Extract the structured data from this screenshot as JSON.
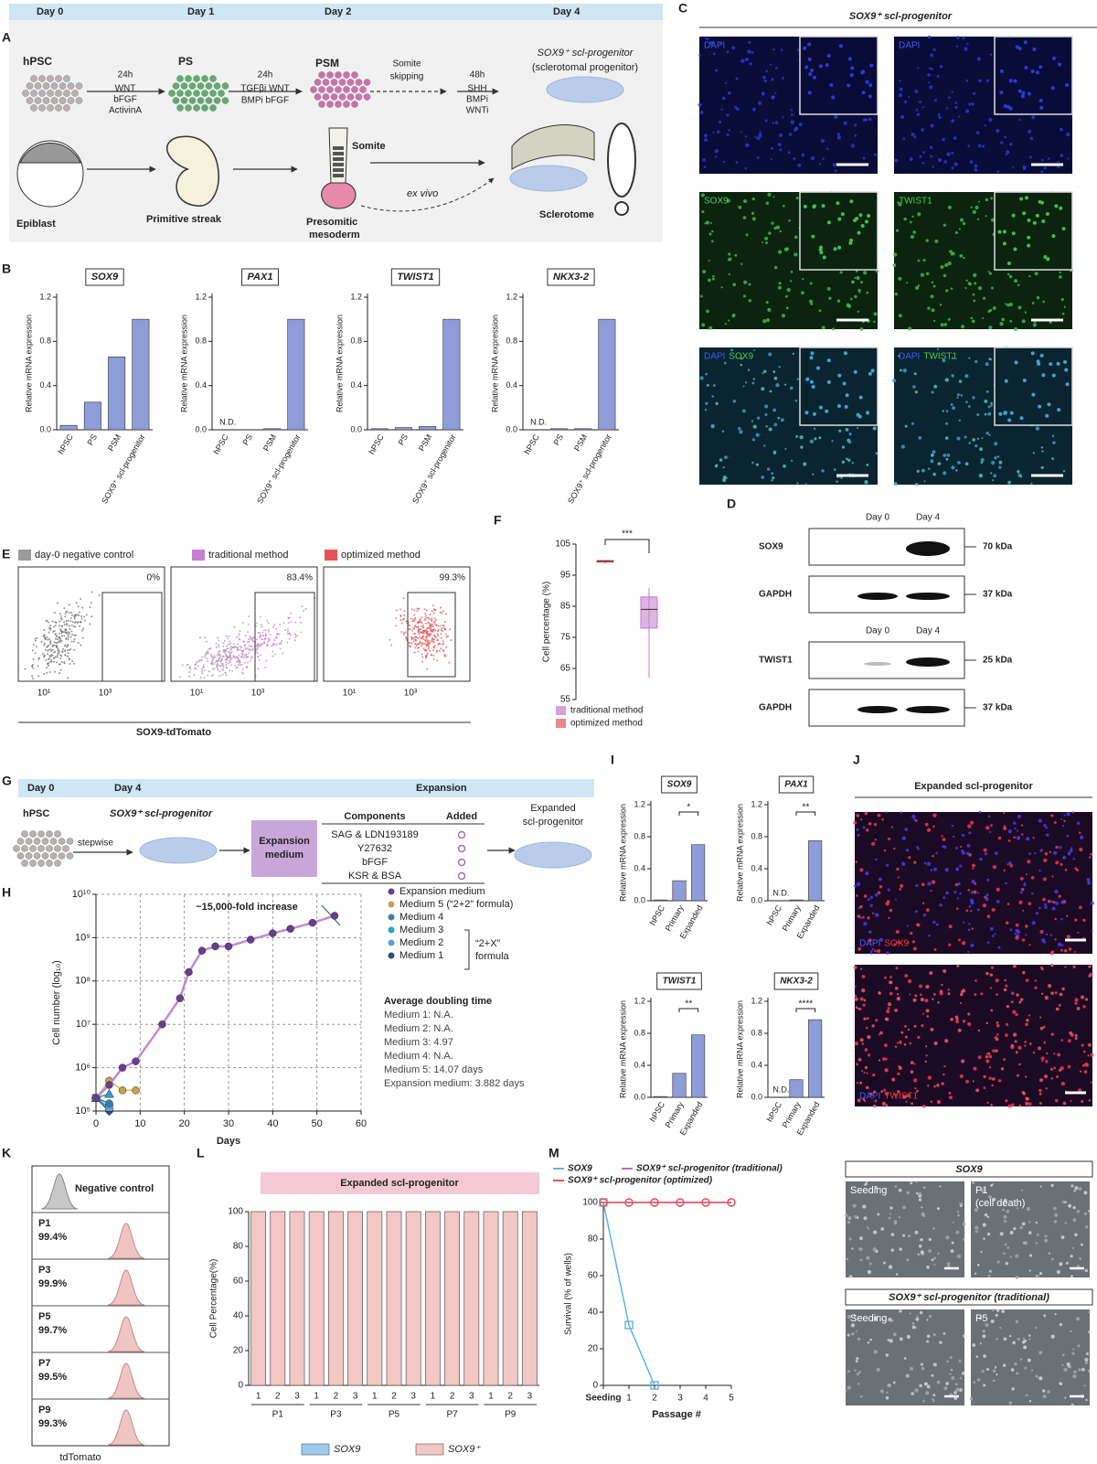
{
  "panels": {
    "A": {
      "letter": "A",
      "days": [
        "Day 0",
        "Day 1",
        "Day 2",
        "Day 4"
      ],
      "hpsc": "hPSC",
      "ps": "PS",
      "psm": "PSM",
      "target": "SOX9⁺ scl-progenitor",
      "target_note": "(sclerotomal progenitor)",
      "step1": [
        "24h",
        "WNT",
        "bFGF",
        "ActivinA"
      ],
      "step2": [
        "24h",
        "TGFβi WNT",
        "BMPi bFGF"
      ],
      "skip": [
        "Somite",
        "skipping"
      ],
      "step3": [
        "48h",
        "SHH",
        "BMPi",
        "WNTi"
      ],
      "epiblast": "Epiblast",
      "streak": "Primitive streak",
      "somite": "Somite",
      "psm_full": [
        "Presomitic",
        "mesoderm"
      ],
      "exvivo": "ex vivo",
      "sclerotome": "Sclerotome"
    },
    "B": {
      "letter": "B",
      "ylabel": "Relative mRNA expression",
      "ylim": [
        0,
        1.2
      ],
      "yticks": [
        {
          "value": 0,
          "label": "0.0"
        },
        0.4,
        0.8,
        1.2
      ],
      "categories": [
        "hPSC",
        "PS",
        "PSM",
        "SOX9⁺ scl-progenitor"
      ],
      "nd": "N.D.",
      "color": "#8e9cd8",
      "charts": [
        {
          "title": "SOX9",
          "values": [
            0.04,
            0.25,
            0.66,
            1.0
          ]
        },
        {
          "title": "PAX1",
          "values": [
            null,
            null,
            0.01,
            1.0
          ]
        },
        {
          "title": "TWIST1",
          "values": [
            0.01,
            0.02,
            0.03,
            1.0
          ]
        },
        {
          "title": "NKX3-2",
          "values": [
            null,
            0.01,
            0.01,
            1.0
          ]
        }
      ]
    },
    "C": {
      "letter": "C",
      "heading": "SOX9⁺ scl-progenitor",
      "labels": [
        [
          "DAPI"
        ],
        [
          "DAPI"
        ],
        [
          "SOX9"
        ],
        [
          "TWIST1"
        ],
        [
          "DAPI",
          "SOX9"
        ],
        [
          "DAPI",
          "TWIST1"
        ]
      ]
    },
    "D": {
      "letter": "D",
      "blots": [
        {
          "lanes": [
            "Day 0",
            "Day 4"
          ],
          "rows": [
            {
              "name": "SOX9",
              "size": "70 kDa"
            },
            {
              "name": "GAPDH",
              "size": "37 kDa"
            }
          ]
        },
        {
          "lanes": [
            "Day 0",
            "Day 4"
          ],
          "rows": [
            {
              "name": "TWIST1",
              "size": "25 kDa"
            },
            {
              "name": "GAPDH",
              "size": "37 kDa"
            }
          ]
        }
      ]
    },
    "E": {
      "letter": "E",
      "legend": [
        {
          "name": "day-0 negative control",
          "color": "#9a9a9a"
        },
        {
          "name": "traditional method",
          "color": "#c77fcf"
        },
        {
          "name": "optimized method",
          "color": "#e8535a"
        }
      ],
      "percentages": [
        "0%",
        "83.4%",
        "99.3%"
      ],
      "xtick_labels": [
        "10¹",
        "10³"
      ],
      "xlabel": "SOX9-tdTomato"
    },
    "F": {
      "letter": "F",
      "ylabel": "Cell percentage (%)",
      "ylim": [
        55,
        105
      ],
      "yticks": [
        55,
        65,
        75,
        85,
        95,
        105
      ],
      "significance": "***",
      "groups": [
        {
          "name": "traditional method",
          "color": "#c57ac9",
          "min": 62,
          "q1": 78,
          "median": 84,
          "q3": 88,
          "max": 91
        },
        {
          "name": "optimized method",
          "color": "#e8535a",
          "min": 98.8,
          "q1": 99.2,
          "median": 99.5,
          "q3": 99.7,
          "max": 99.9
        }
      ]
    },
    "G": {
      "letter": "G",
      "days": [
        "Day 0",
        "Day 4",
        "Expansion"
      ],
      "hpsc": "hPSC",
      "stepwise": "stepwise",
      "progenitor": "SOX9⁺ scl-progenitor",
      "medium": [
        "Expansion",
        "medium"
      ],
      "table_header": [
        "Components",
        "Added"
      ],
      "components": [
        "SAG & LDN193189",
        "Y27632",
        "bFGF",
        "KSR & BSA"
      ],
      "expanded": [
        "Expanded",
        "scl-progenitor"
      ]
    },
    "H": {
      "letter": "H",
      "annotation": "~15,000-fold increase",
      "xlabel": "Days",
      "ylabel": "Cell number (log₁₀)",
      "xlim": [
        0,
        60
      ],
      "xticks": [
        0,
        10,
        20,
        30,
        40,
        50,
        60
      ],
      "ylim": [
        100000,
        10000000000
      ],
      "log_y": true,
      "grid": true,
      "yticks": [
        {
          "value": 100000,
          "label": "10⁵"
        },
        {
          "value": 1000000,
          "label": "10⁶"
        },
        {
          "value": 10000000,
          "label": "10⁷"
        },
        {
          "value": 100000000,
          "label": "10⁸"
        },
        {
          "value": 1000000000,
          "label": "10⁹"
        },
        {
          "value": 10000000000,
          "label": "10¹⁰"
        }
      ],
      "series": [
        {
          "name": "Expansion medium",
          "color": "#6a3d8f",
          "line": "#c08ad4",
          "x": [
            0,
            3,
            6,
            9,
            15,
            19,
            21,
            24,
            27,
            30,
            35,
            40,
            44,
            49,
            54
          ],
          "y": [
            200000,
            400000,
            1000000,
            1400000,
            10000000,
            40000000,
            160000000,
            500000000,
            630000000,
            630000000,
            900000000,
            1260000000,
            1600000000,
            2200000000,
            3200000000
          ]
        },
        {
          "name": "Medium 5 (“2+2” formula)",
          "color": "#c9a04a",
          "line": "#d9b870",
          "x": [
            0,
            3,
            6,
            9
          ],
          "y": [
            200000,
            500000,
            300000,
            300000
          ]
        },
        {
          "name": "Medium 4",
          "color": "#3b7fa8",
          "line": "#3b7fa8",
          "x": [
            0,
            3
          ],
          "y": [
            200000,
            150000
          ]
        },
        {
          "name": "Medium 3",
          "color": "#2f9fc9",
          "line": "#2f9fc9",
          "x": [
            0,
            3
          ],
          "y": [
            200000,
            250000
          ]
        },
        {
          "name": "Medium 2",
          "color": "#5aa0d8",
          "line": "#5aa0d8",
          "x": [
            0,
            3
          ],
          "y": [
            200000,
            120000
          ]
        },
        {
          "name": "Medium 1",
          "color": "#27507a",
          "line": "#27507a",
          "x": [
            0,
            3
          ],
          "y": [
            200000,
            100000
          ]
        }
      ],
      "bracket": [
        "“2+X”",
        "formula"
      ],
      "doubling": [
        "Average doubling time",
        "Medium 1: N.A.",
        "Medium 2: N.A.",
        "Medium 3: 4.97",
        "Medium 4: N.A.",
        "Medium 5: 14.07 days",
        "Expansion medium: 3.882 days"
      ]
    },
    "I": {
      "letter": "I",
      "ylabel": "Relative mRNA expression",
      "ylim": [
        0,
        1.2
      ],
      "yticks": [
        {
          "value": 0,
          "label": "0.0"
        },
        0.4,
        0.8,
        1.2
      ],
      "categories": [
        "hPSC",
        "Primary",
        "Expanded"
      ],
      "nd": "N.D.",
      "color": "#8e9cd8",
      "charts": [
        {
          "title": "SOX9",
          "significance": "*",
          "values": [
            0.01,
            0.25,
            0.7
          ]
        },
        {
          "title": "PAX1",
          "significance": "**",
          "values": [
            null,
            0.01,
            0.75
          ]
        },
        {
          "title": "TWIST1",
          "significance": "**",
          "values": [
            0.01,
            0.3,
            0.78
          ]
        },
        {
          "title": "NKX3-2",
          "significance": "****",
          "values": [
            null,
            0.22,
            0.97
          ]
        }
      ]
    },
    "J": {
      "letter": "J",
      "heading": "Expanded scl-progenitor",
      "labels": [
        [
          "DAPI",
          "SOX9"
        ],
        [
          "DAPI",
          "TWIST1"
        ]
      ]
    },
    "K": {
      "letter": "K",
      "negative": "Negative control",
      "xlabel": "tdTomato",
      "passages": [
        {
          "name": "P1",
          "pct": "99.4%"
        },
        {
          "name": "P3",
          "pct": "99.9%"
        },
        {
          "name": "P5",
          "pct": "99.7%"
        },
        {
          "name": "P7",
          "pct": "99.5%"
        },
        {
          "name": "P9",
          "pct": "99.3%"
        }
      ]
    },
    "L": {
      "letter": "L",
      "title": "Expanded scl-progenitor",
      "ylabel": "Cell Percentage(%)",
      "ylim": [
        0,
        100
      ],
      "yticks": [
        0,
        20,
        40,
        60,
        80,
        100
      ],
      "categories": [
        "1",
        "2",
        "3",
        "1",
        "2",
        "3",
        "1",
        "2",
        "3",
        "1",
        "2",
        "3",
        "1",
        "2",
        "3"
      ],
      "values": [
        100,
        100,
        100,
        100,
        100,
        100,
        100,
        100,
        100,
        100,
        100,
        100,
        100,
        100,
        100
      ],
      "groups": [
        "P1",
        "P3",
        "P5",
        "P7",
        "P9"
      ],
      "legend": [
        {
          "name": "SOX9",
          "color": "#9ccbef"
        },
        {
          "name": "SOX9⁺",
          "color": "#f3c7c4"
        }
      ]
    },
    "M": {
      "letter": "M",
      "ylabel": "Survival (% of wells)",
      "xlabel": "Passage #",
      "ylim": [
        0,
        100
      ],
      "yticks": [
        0,
        20,
        40,
        60,
        80,
        100
      ],
      "categories": [
        "Seeding",
        "1",
        "2",
        "3",
        "4",
        "5"
      ],
      "series": [
        {
          "name": "SOX9",
          "color": "#5db3e8",
          "values": [
            100,
            33,
            0,
            null,
            null,
            null
          ]
        },
        {
          "name": "SOX9⁺ scl-progenitor (traditional)",
          "color": "#c766c9",
          "values": [
            100,
            100,
            100,
            100,
            100,
            100
          ]
        },
        {
          "name": "SOX9⁺ scl-progenitor (optimized)",
          "color": "#e8535a",
          "values": [
            100,
            100,
            100,
            100,
            100,
            100
          ]
        }
      ],
      "images": [
        {
          "header": "SOX9",
          "panels": [
            [
              "Seeding"
            ],
            [
              "P1",
              "(cell death)"
            ]
          ]
        },
        {
          "header": "SOX9⁺ scl-progenitor (traditional)",
          "panels": [
            [
              "Seeding"
            ],
            [
              "P5"
            ]
          ]
        }
      ]
    }
  }
}
